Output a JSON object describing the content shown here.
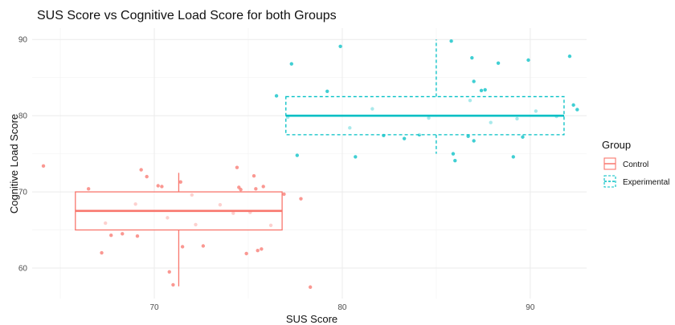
{
  "chart_data": {
    "type": "scatter",
    "title": "SUS Score vs Cognitive Load Score for both Groups",
    "xlabel": "SUS Score",
    "ylabel": "Cognitive Load Score",
    "xlim": [
      63.5,
      93.0
    ],
    "ylim": [
      56.0,
      91.5
    ],
    "xticks": [
      "70",
      "80",
      "90"
    ],
    "xtick_values": [
      70,
      80,
      90
    ],
    "yticks": [
      "60",
      "70",
      "80",
      "90"
    ],
    "ytick_values": [
      60,
      70,
      80,
      90
    ],
    "grid": true,
    "legend": {
      "title": "Group",
      "position": "right",
      "entries": [
        "Control",
        "Experimental"
      ]
    },
    "colors": {
      "Control": "#F8766D",
      "Experimental": "#00BFC4"
    },
    "series": [
      {
        "name": "Control",
        "color": "#F8766D",
        "box": {
          "xmin": 65.8,
          "q1": 65.0,
          "median": 67.5,
          "q3": 70.0,
          "xmax": 76.8,
          "whisker_x": 71.3,
          "whisker_low": 57.6,
          "whisker_high": 72.5,
          "line_style": "solid"
        },
        "points": [
          [
            64.1,
            73.4
          ],
          [
            66.5,
            70.4
          ],
          [
            67.2,
            62.0
          ],
          [
            67.7,
            64.3
          ],
          [
            68.3,
            64.5
          ],
          [
            69.1,
            64.2
          ],
          [
            69.3,
            72.9
          ],
          [
            69.6,
            72.0
          ],
          [
            70.2,
            70.8
          ],
          [
            70.4,
            70.7
          ],
          [
            70.8,
            59.5
          ],
          [
            71.0,
            57.8
          ],
          [
            71.4,
            71.3
          ],
          [
            71.5,
            62.8
          ],
          [
            72.0,
            69.6
          ],
          [
            72.6,
            62.9
          ],
          [
            74.4,
            73.2
          ],
          [
            74.5,
            70.6
          ],
          [
            74.6,
            70.3
          ],
          [
            74.9,
            61.9
          ],
          [
            75.3,
            72.1
          ],
          [
            75.4,
            70.4
          ],
          [
            75.5,
            62.3
          ],
          [
            75.7,
            62.5
          ],
          [
            75.8,
            70.7
          ],
          [
            76.9,
            69.7
          ],
          [
            77.8,
            69.1
          ],
          [
            78.3,
            57.5
          ],
          [
            67.4,
            65.9
          ],
          [
            69.0,
            68.4
          ],
          [
            70.7,
            66.6
          ],
          [
            72.2,
            65.7
          ],
          [
            73.5,
            68.3
          ],
          [
            74.2,
            67.2
          ],
          [
            75.1,
            67.3
          ],
          [
            76.2,
            65.6
          ]
        ]
      },
      {
        "name": "Experimental",
        "color": "#00BFC4",
        "box": {
          "xmin": 77.0,
          "q1": 77.5,
          "median": 80.0,
          "q3": 82.5,
          "xmax": 91.8,
          "whisker_x": 85.0,
          "whisker_low": 75.0,
          "whisker_high": 90.0,
          "line_style": "dashed"
        },
        "points": [
          [
            76.5,
            82.6
          ],
          [
            77.1,
            79.8
          ],
          [
            77.3,
            86.8
          ],
          [
            77.6,
            74.8
          ],
          [
            79.2,
            83.2
          ],
          [
            79.9,
            89.1
          ],
          [
            80.7,
            74.6
          ],
          [
            82.2,
            77.4
          ],
          [
            83.3,
            77.0
          ],
          [
            84.1,
            77.5
          ],
          [
            85.8,
            89.8
          ],
          [
            85.9,
            75.0
          ],
          [
            86.0,
            74.1
          ],
          [
            86.7,
            77.3
          ],
          [
            86.9,
            87.6
          ],
          [
            87.0,
            76.7
          ],
          [
            87.0,
            84.5
          ],
          [
            87.4,
            83.3
          ],
          [
            87.6,
            83.4
          ],
          [
            88.3,
            86.9
          ],
          [
            89.1,
            74.6
          ],
          [
            89.6,
            77.2
          ],
          [
            89.9,
            87.3
          ],
          [
            91.4,
            79.9
          ],
          [
            92.1,
            87.8
          ],
          [
            92.3,
            81.4
          ],
          [
            92.5,
            80.8
          ],
          [
            80.4,
            78.4
          ],
          [
            81.6,
            80.9
          ],
          [
            84.6,
            79.7
          ],
          [
            86.8,
            82.0
          ],
          [
            87.9,
            79.1
          ],
          [
            89.3,
            79.6
          ],
          [
            90.3,
            80.6
          ]
        ]
      }
    ]
  }
}
